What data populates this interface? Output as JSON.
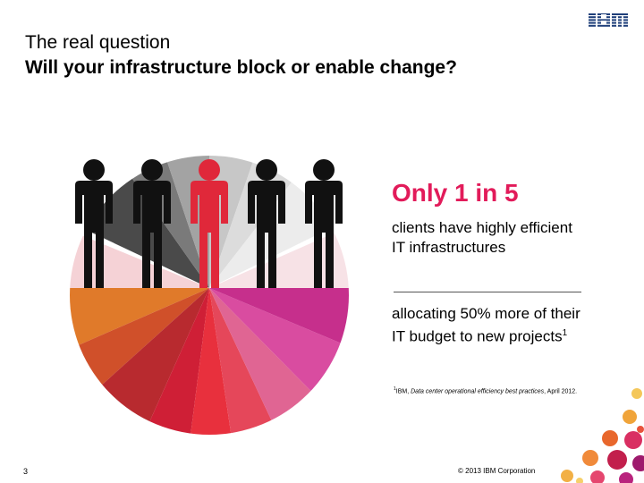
{
  "header": {
    "title_line1": "The real question",
    "title_line2": "Will your infrastructure block or enable change?"
  },
  "logo": {
    "text": "IBM",
    "icon": "ibm-logo"
  },
  "stat": {
    "headline": "Only 1 in 5",
    "description": "clients have highly efficient IT infrastructures",
    "detail": "allocating 50% more of their IT budget to new projects",
    "detail_superscript": "1"
  },
  "footnote": {
    "marker": "1",
    "prefix": "IBM, ",
    "source_italic": "Data center operational efficiency best practices",
    "suffix": ", April 2012."
  },
  "footer": {
    "page_number": "3",
    "copyright": "© 2013 IBM Corporation"
  },
  "colors": {
    "accent_pink": "#e21b5a",
    "figure_black": "#111111",
    "figure_red": "#e0283a",
    "figure_icon": "person-icon"
  }
}
